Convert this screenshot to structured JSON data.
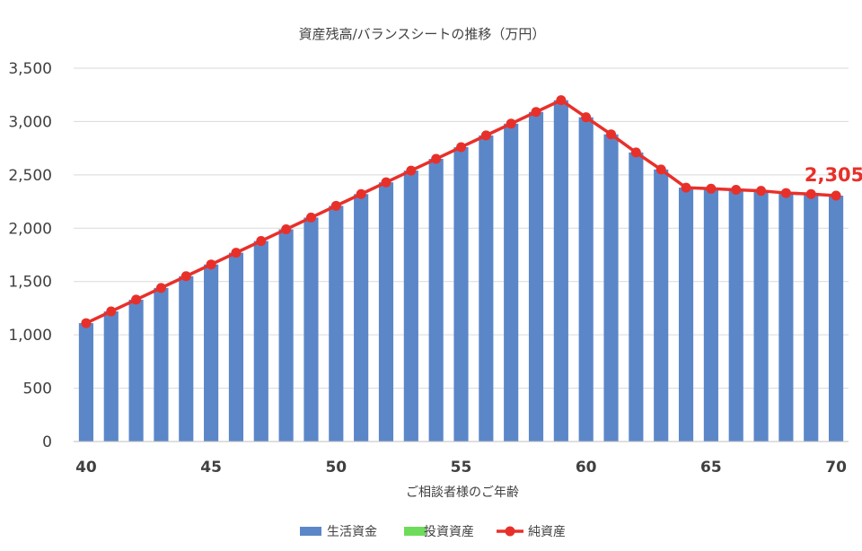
{
  "chart_data": {
    "type": "bar+line",
    "title": "資産残高/バランスシートの推移（万円）",
    "xlabel": "ご相談者様のご年齢",
    "ylabel": "",
    "ylim": [
      0,
      3500
    ],
    "yticks": [
      0,
      500,
      1000,
      1500,
      2000,
      2500,
      3000,
      3500
    ],
    "ytick_labels": [
      "0",
      "500",
      "1,000",
      "1,500",
      "2,000",
      "2,500",
      "3,000",
      "3,500"
    ],
    "x": [
      40,
      41,
      42,
      43,
      44,
      45,
      46,
      47,
      48,
      49,
      50,
      51,
      52,
      53,
      54,
      55,
      56,
      57,
      58,
      59,
      60,
      61,
      62,
      63,
      64,
      65,
      66,
      67,
      68,
      69,
      70
    ],
    "xtick_values": [
      40,
      45,
      50,
      55,
      60,
      65,
      70
    ],
    "xtick_labels": [
      "40",
      "45",
      "50",
      "55",
      "60",
      "65",
      "70"
    ],
    "series": [
      {
        "name": "生活資金",
        "kind": "bar",
        "color": "#5b87c9",
        "values": [
          1110,
          1220,
          1330,
          1440,
          1550,
          1660,
          1770,
          1880,
          1990,
          2100,
          2210,
          2320,
          2430,
          2540,
          2650,
          2760,
          2870,
          2980,
          3090,
          3200,
          3040,
          2880,
          2710,
          2550,
          2380,
          2370,
          2360,
          2350,
          2330,
          2320,
          2305
        ]
      },
      {
        "name": "投資資産",
        "kind": "bar",
        "color": "#6ddc5a",
        "values": [
          0,
          0,
          0,
          0,
          0,
          0,
          0,
          0,
          0,
          0,
          0,
          0,
          0,
          0,
          0,
          0,
          0,
          0,
          0,
          0,
          0,
          0,
          0,
          0,
          0,
          0,
          0,
          0,
          0,
          0,
          0
        ]
      },
      {
        "name": "純資産",
        "kind": "line",
        "color": "#e8302a",
        "values": [
          1110,
          1220,
          1330,
          1440,
          1550,
          1660,
          1770,
          1880,
          1990,
          2100,
          2210,
          2320,
          2430,
          2540,
          2650,
          2760,
          2870,
          2980,
          3090,
          3200,
          3040,
          2880,
          2710,
          2550,
          2380,
          2370,
          2360,
          2350,
          2330,
          2320,
          2305
        ]
      }
    ],
    "annotations": [
      {
        "text": "2,305",
        "x": 70,
        "y": 2305,
        "color": "#e8302a"
      }
    ],
    "grid": true,
    "legend": "bottom-center"
  }
}
